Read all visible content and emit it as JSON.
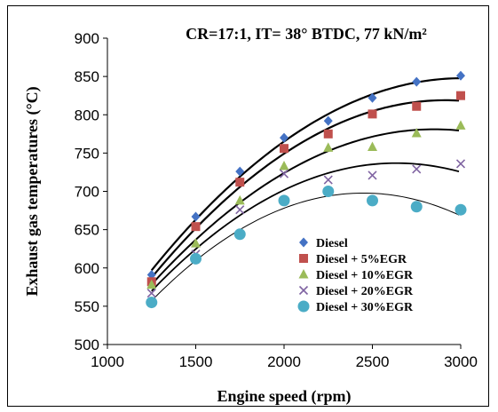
{
  "chart_data": {
    "type": "scatter",
    "title": "CR=17:1, IT= 38° BTDC, 77 kN/m²",
    "xlabel": "Engine speed (rpm)",
    "ylabel": "Exhaust gas temperatures (°C)",
    "xlim": [
      1000,
      3000
    ],
    "ylim": [
      500,
      900
    ],
    "x_ticks": [
      "1000",
      "1500",
      "2000",
      "2500",
      "3000"
    ],
    "y_ticks": [
      "500",
      "550",
      "600",
      "650",
      "700",
      "750",
      "800",
      "850",
      "900"
    ],
    "grid": false,
    "legend_position": "bottom-right",
    "trendlines": "polynomial order 2",
    "x": [
      1250,
      1500,
      1750,
      2000,
      2250,
      2500,
      2750,
      3000
    ],
    "series": [
      {
        "name": "Diesel",
        "marker": "diamond",
        "color": "#4472C4",
        "values": [
          591,
          667,
          726,
          770,
          792,
          822,
          843,
          851
        ]
      },
      {
        "name": "Diesel + 5%EGR",
        "marker": "square",
        "color": "#C0504D",
        "values": [
          582,
          654,
          712,
          756,
          775,
          801,
          811,
          825
        ]
      },
      {
        "name": "Diesel + 10%EGR",
        "marker": "triangle",
        "color": "#9BBB59",
        "values": [
          578,
          632,
          688,
          733,
          757,
          758,
          776,
          786
        ]
      },
      {
        "name": "Diesel + 20%EGR",
        "marker": "cross",
        "color": "#8064A2",
        "values": [
          567,
          618,
          676,
          723,
          715,
          721,
          729,
          736
        ]
      },
      {
        "name": "Diesel + 30%EGR",
        "marker": "circle",
        "color": "#4BACC6",
        "values": [
          555,
          612,
          644,
          688,
          700,
          688,
          680,
          676
        ]
      }
    ]
  }
}
